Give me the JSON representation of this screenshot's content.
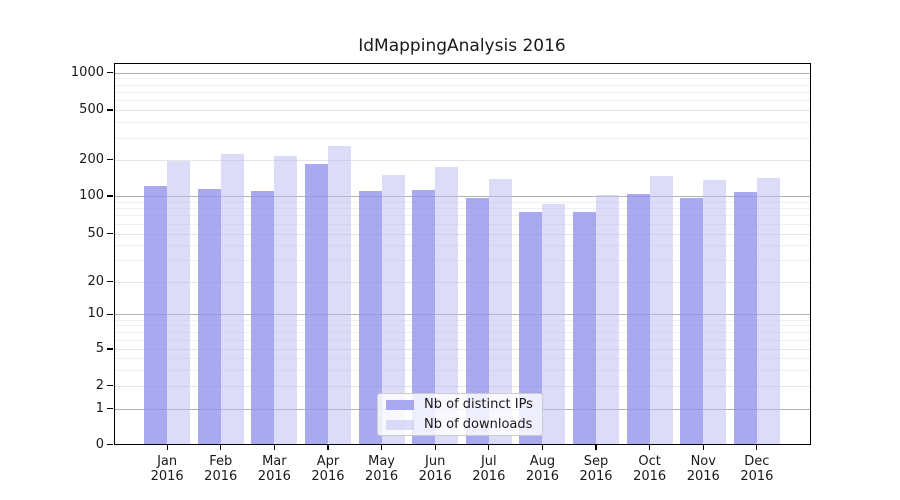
{
  "title": "IdMappingAnalysis 2016",
  "chart_data": {
    "type": "bar",
    "title": "IdMappingAnalysis 2016",
    "categories": [
      "Jan",
      "Feb",
      "Mar",
      "Apr",
      "May",
      "Jun",
      "Jul",
      "Aug",
      "Sep",
      "Oct",
      "Nov",
      "Dec"
    ],
    "year_label": "2016",
    "series": [
      {
        "name": "Nb of distinct IPs",
        "color": "rgba(148,148,236,0.8)",
        "apparent_color": "#a9a9f0",
        "values": [
          121,
          114,
          111,
          183,
          111,
          113,
          96,
          75,
          75,
          104,
          97,
          107
        ]
      },
      {
        "name": "Nb of downloads",
        "color": "rgba(185,185,243,0.5)",
        "apparent_color": "#dcdcf9",
        "values": [
          195,
          222,
          213,
          257,
          148,
          175,
          138,
          87,
          102,
          147,
          135,
          142
        ]
      }
    ],
    "xlabel": "",
    "ylabel": "",
    "yscale": "symlog",
    "yticks": [
      0,
      1,
      2,
      5,
      10,
      20,
      50,
      100,
      200,
      500,
      1000
    ],
    "y_minor_gridlines": [
      3,
      4,
      6,
      7,
      8,
      9,
      30,
      40,
      60,
      70,
      80,
      90,
      300,
      400,
      600,
      700,
      800,
      900
    ],
    "ylim": [
      0,
      1200
    ],
    "grid": true,
    "legend_position": "lower center",
    "background_color": "#ffffff",
    "gridline_major_color": "#b2b2b2",
    "gridline_minor_color": "#f0f0f0"
  }
}
